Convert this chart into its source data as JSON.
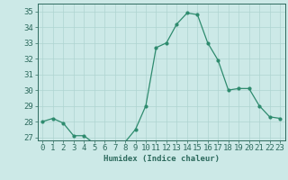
{
  "x": [
    0,
    1,
    2,
    3,
    4,
    5,
    6,
    7,
    8,
    9,
    10,
    11,
    12,
    13,
    14,
    15,
    16,
    17,
    18,
    19,
    20,
    21,
    22,
    23
  ],
  "y": [
    28.0,
    28.2,
    27.9,
    27.1,
    27.1,
    26.6,
    26.6,
    26.7,
    26.7,
    27.5,
    29.0,
    32.7,
    33.0,
    34.2,
    34.9,
    34.8,
    33.0,
    31.9,
    30.0,
    30.1,
    30.1,
    29.0,
    28.3,
    28.2
  ],
  "line_color": "#2e8b6e",
  "marker": "o",
  "marker_size": 2.0,
  "bg_color": "#cce9e7",
  "grid_color": "#aed4d1",
  "tick_color": "#2e6b5e",
  "label_color": "#2e6b5e",
  "xlabel": "Humidex (Indice chaleur)",
  "ylim": [
    26.8,
    35.5
  ],
  "yticks": [
    27,
    28,
    29,
    30,
    31,
    32,
    33,
    34,
    35
  ],
  "xticks": [
    0,
    1,
    2,
    3,
    4,
    5,
    6,
    7,
    8,
    9,
    10,
    11,
    12,
    13,
    14,
    15,
    16,
    17,
    18,
    19,
    20,
    21,
    22,
    23
  ],
  "font_size": 6.5
}
